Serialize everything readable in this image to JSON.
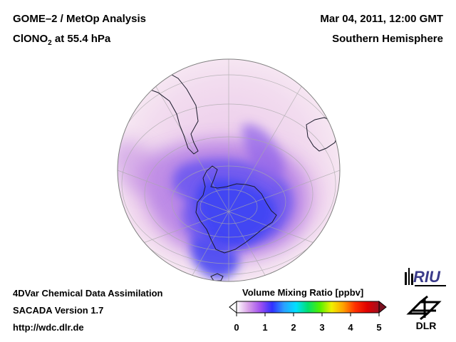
{
  "header": {
    "title": "GOME–2 / MetOp Analysis",
    "species_prefix": "ClONO",
    "species_sub": "2",
    "species_suffix": " at 55.4 hPa",
    "datetime": "Mar 04, 2011, 12:00 GMT",
    "region": "Southern Hemisphere"
  },
  "footer": {
    "line1": "4DVar Chemical Data Assimilation",
    "line2": "SACADA Version 1.7",
    "line3": "http://wdc.dlr.de"
  },
  "colorbar": {
    "title": "Volume Mixing Ratio [ppbv]",
    "ticks": [
      "0",
      "1",
      "2",
      "3",
      "4",
      "5"
    ],
    "range": [
      0,
      5
    ],
    "colors": [
      "#ffffff",
      "#d8a0e8",
      "#a050f0",
      "#3030ff",
      "#2aa0ff",
      "#00e0ff",
      "#00e070",
      "#50f000",
      "#f0f000",
      "#ffa000",
      "#ff3000",
      "#e00000",
      "#a01020"
    ]
  },
  "logos": {
    "riu": "RIU",
    "dlr": "DLR"
  },
  "map": {
    "projection": "orthographic",
    "center": "South Pole"
  }
}
